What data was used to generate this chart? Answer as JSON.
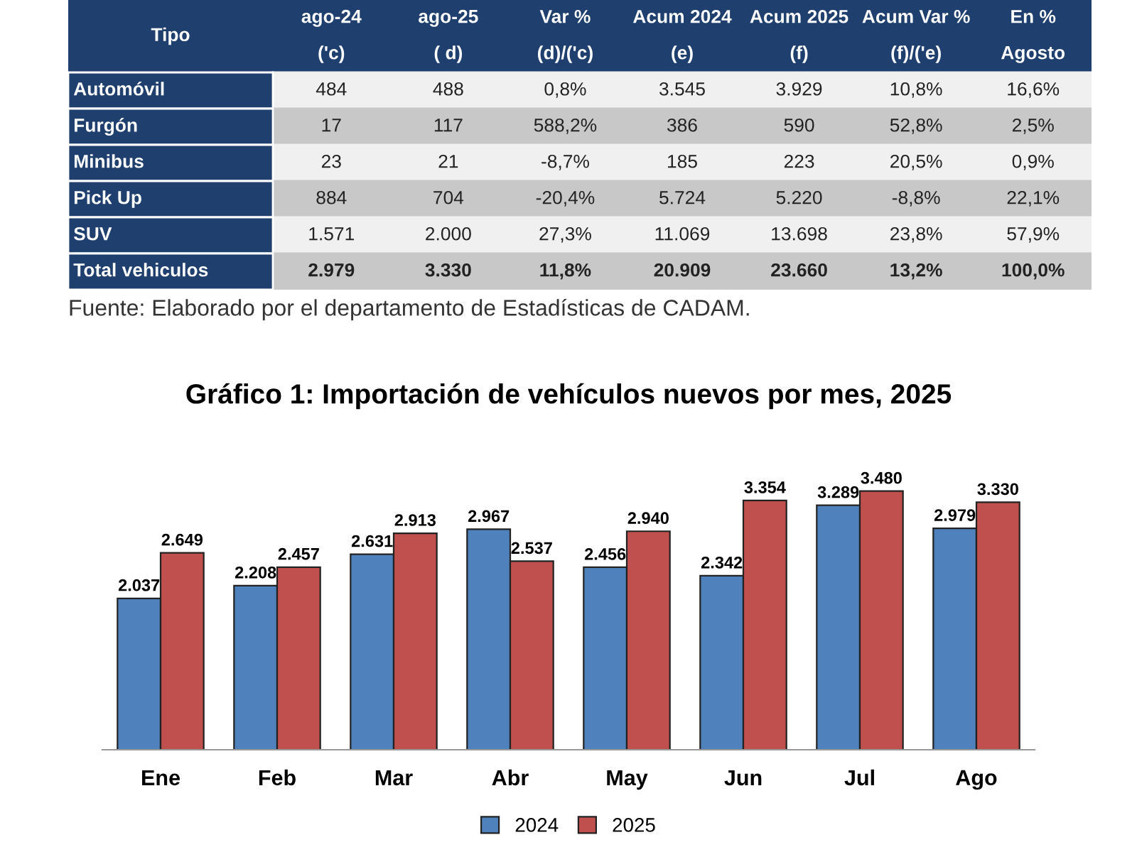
{
  "chart_data": [
    {
      "type": "other",
      "categories": [
        "Tipo",
        "ago-24",
        "ago-25",
        "Var %",
        "Acum 2024",
        "Acum 2025",
        "Acum Var %",
        "En %"
      ],
      "y_categories": [
        null,
        "Automóvil",
        "Furgón",
        "Minibus",
        "Pick Up",
        "SUV",
        "Total vehiculos"
      ],
      "cell_labels": [
        [
          "('c)",
          "( d)",
          "(d)/('c)",
          "(e)",
          "(f)",
          "(f)/('e)",
          "Agosto"
        ],
        [
          "484",
          "488",
          "0,8%",
          "3.545",
          "3.929",
          "10,8%",
          "16,6%"
        ],
        [
          "17",
          "117",
          "588,2%",
          "386",
          "590",
          "52,8%",
          "2,5%"
        ],
        [
          "23",
          "21",
          "-8,7%",
          "185",
          "223",
          "20,5%",
          "0,9%"
        ],
        [
          "884",
          "704",
          "-20,4%",
          "5.724",
          "5.220",
          "-8,8%",
          "22,1%"
        ],
        [
          "1.571",
          "2.000",
          "27,3%",
          "11.069",
          "13.698",
          "23,8%",
          "57,9%"
        ],
        [
          "2.979",
          "3.330",
          "11,8%",
          "20.909",
          "23.660",
          "13,2%",
          "100,0%"
        ]
      ],
      "annotations": [
        "Fuente: Elaborado por el departamento de Estadísticas de CADAM."
      ]
    },
    {
      "type": "bar",
      "title": "Gráfico 1: Importación de vehículos nuevos por mes, 2025",
      "categories": [
        "Ene",
        "Feb",
        "Mar",
        "Abr",
        "May",
        "Jun",
        "Jul",
        "Ago"
      ],
      "series": [
        {
          "name": "2024",
          "color": "#4f81bd",
          "values": [
            2037,
            2208,
            2631,
            2967,
            2456,
            2342,
            3289,
            2979
          ],
          "value_labels": [
            "2.037",
            "2.208",
            "2.631",
            "2.967",
            "2.456",
            "2.342",
            "3.289",
            "2.979"
          ]
        },
        {
          "name": "2025",
          "color": "#c0504d",
          "values": [
            2649,
            2457,
            2913,
            2537,
            2940,
            3354,
            3480,
            3330
          ],
          "value_labels": [
            "2.649",
            "2.457",
            "2.913",
            "2.537",
            "2.940",
            "3.354",
            "3.480",
            "3.330"
          ]
        }
      ],
      "legend": "bottom",
      "grid": false,
      "tick_labels": "x"
    }
  ]
}
